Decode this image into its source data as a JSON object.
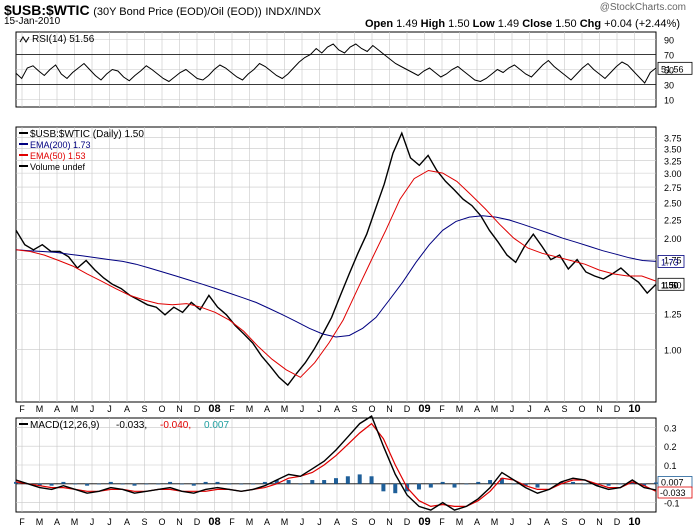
{
  "header": {
    "symbol": "$USB:$WTIC",
    "description": "(30Y Bond Price (EOD)/Oil (EOD))",
    "exchange": "INDX/INDX",
    "date": "15-Jan-2010",
    "brand": "@StockCharts.com",
    "quote": {
      "open_label": "Open",
      "open": "1.49",
      "high_label": "High",
      "high": "1.50",
      "low_label": "Low",
      "low": "1.49",
      "close_label": "Close",
      "close": "1.50",
      "chg_label": "Chg",
      "chg": "+0.04 (+2.44%)"
    }
  },
  "colors": {
    "price": "#000000",
    "ema200": "#000080",
    "ema50": "#e00000",
    "macd_hist": "#1f5f99",
    "signal": "#e00000",
    "grid": "#c8c8c8"
  },
  "chart_data": [
    {
      "type": "line",
      "panel": "rsi",
      "title": "RSI(14) 51.56",
      "ylim": [
        0,
        100
      ],
      "yticks": [
        10,
        30,
        50,
        70,
        90
      ],
      "reference_lines": [
        30,
        70
      ],
      "last_value": "51.56",
      "series": [
        {
          "name": "RSI(14)",
          "values": [
            45,
            38,
            52,
            55,
            48,
            42,
            50,
            56,
            44,
            38,
            46,
            52,
            58,
            50,
            42,
            36,
            44,
            50,
            48,
            40,
            35,
            42,
            48,
            55,
            50,
            44,
            38,
            34,
            40,
            46,
            50,
            44,
            38,
            36,
            42,
            50,
            56,
            52,
            46,
            40,
            36,
            44,
            50,
            58,
            54,
            48,
            42,
            38,
            44,
            52,
            60,
            66,
            70,
            78,
            72,
            80,
            84,
            76,
            72,
            80,
            84,
            78,
            74,
            82,
            76,
            70,
            64,
            58,
            54,
            50,
            46,
            42,
            48,
            52,
            46,
            40,
            44,
            50,
            54,
            48,
            42,
            36,
            34,
            38,
            44,
            50,
            46,
            52,
            56,
            50,
            44,
            40,
            48,
            56,
            62,
            54,
            48,
            42,
            36,
            44,
            52,
            58,
            50,
            44,
            38,
            46,
            54,
            60,
            56,
            48,
            40,
            32,
            46,
            52
          ]
        }
      ]
    },
    {
      "type": "line",
      "panel": "price",
      "title": "$USB:$WTIC (Daily) 1.50",
      "scale": "log",
      "ylim": [
        0.72,
        4.0
      ],
      "yticks": [
        1.0,
        1.25,
        1.5,
        1.75,
        2.0,
        2.25,
        2.5,
        2.75,
        3.0,
        3.25,
        3.5,
        3.75
      ],
      "x_month_labels": [
        "F",
        "M",
        "A",
        "M",
        "J",
        "J",
        "A",
        "S",
        "O",
        "N",
        "D",
        "08",
        "F",
        "M",
        "A",
        "M",
        "J",
        "J",
        "A",
        "S",
        "O",
        "N",
        "D",
        "09",
        "F",
        "M",
        "A",
        "M",
        "J",
        "J",
        "A",
        "S",
        "O",
        "N",
        "D",
        "10"
      ],
      "value_badges": [
        {
          "label": "1.73",
          "series": "EMA(200)"
        },
        {
          "label": "1.50",
          "series": "$USB:$WTIC"
        }
      ],
      "series": [
        {
          "name": "$USB:$WTIC (Daily) 1.50",
          "legend": "$USB:$WTIC (Daily) 1.50",
          "values": [
            2.1,
            1.92,
            1.86,
            1.92,
            1.84,
            1.84,
            1.78,
            1.66,
            1.74,
            1.64,
            1.56,
            1.5,
            1.46,
            1.4,
            1.36,
            1.32,
            1.3,
            1.24,
            1.3,
            1.26,
            1.34,
            1.28,
            1.4,
            1.3,
            1.24,
            1.16,
            1.1,
            1.04,
            0.96,
            0.9,
            0.84,
            0.8,
            0.86,
            0.92,
            1.0,
            1.1,
            1.22,
            1.4,
            1.6,
            1.82,
            2.05,
            2.4,
            2.8,
            3.4,
            3.85,
            3.3,
            3.15,
            3.35,
            3.05,
            2.85,
            2.7,
            2.55,
            2.45,
            2.3,
            2.1,
            1.95,
            1.8,
            1.72,
            1.9,
            2.05,
            1.9,
            1.75,
            1.8,
            1.65,
            1.75,
            1.62,
            1.58,
            1.55,
            1.6,
            1.66,
            1.58,
            1.52,
            1.42,
            1.5
          ]
        },
        {
          "name": "EMA(200)",
          "legend": "EMA(200) 1.73",
          "values": [
            1.86,
            1.85,
            1.84,
            1.83,
            1.81,
            1.79,
            1.77,
            1.75,
            1.73,
            1.7,
            1.66,
            1.62,
            1.58,
            1.54,
            1.5,
            1.46,
            1.42,
            1.38,
            1.34,
            1.29,
            1.24,
            1.19,
            1.14,
            1.1,
            1.08,
            1.09,
            1.14,
            1.22,
            1.36,
            1.52,
            1.72,
            1.92,
            2.1,
            2.22,
            2.28,
            2.3,
            2.28,
            2.24,
            2.18,
            2.12,
            2.06,
            2.0,
            1.95,
            1.9,
            1.85,
            1.81,
            1.77,
            1.74,
            1.73
          ]
        },
        {
          "name": "EMA(50)",
          "legend": "EMA(50) 1.53",
          "values": [
            1.86,
            1.84,
            1.8,
            1.74,
            1.68,
            1.6,
            1.53,
            1.46,
            1.4,
            1.36,
            1.33,
            1.32,
            1.33,
            1.3,
            1.26,
            1.2,
            1.12,
            1.02,
            0.94,
            0.88,
            0.84,
            0.92,
            1.04,
            1.2,
            1.45,
            1.75,
            2.1,
            2.55,
            2.9,
            3.05,
            3.0,
            2.85,
            2.62,
            2.4,
            2.18,
            2.0,
            1.88,
            1.82,
            1.78,
            1.74,
            1.7,
            1.64,
            1.6,
            1.58,
            1.58,
            1.53
          ]
        },
        {
          "name": "Volume",
          "legend": "Volume undef",
          "values": []
        }
      ]
    },
    {
      "type": "line",
      "panel": "macd",
      "title": "MACD(12,26,9)",
      "title_values": [
        {
          "text": "-0.033",
          "color": "#000000"
        },
        {
          "text": "-0.040",
          "color": "#e00000"
        },
        {
          "text": "0.007",
          "color": "#1f9fa0"
        }
      ],
      "ylim": [
        -0.15,
        0.35
      ],
      "yticks": [
        0.3,
        0.2,
        0.1,
        -0.1
      ],
      "value_badges": [
        {
          "label": "0.007"
        },
        {
          "label": "-0.033"
        }
      ],
      "x_month_labels": [
        "F",
        "M",
        "A",
        "M",
        "J",
        "J",
        "A",
        "S",
        "O",
        "N",
        "D",
        "08",
        "F",
        "M",
        "A",
        "M",
        "J",
        "J",
        "A",
        "S",
        "O",
        "N",
        "D",
        "09",
        "F",
        "M",
        "A",
        "M",
        "J",
        "J",
        "A",
        "S",
        "O",
        "N",
        "D",
        "10"
      ],
      "series": [
        {
          "name": "MACD",
          "values": [
            0.02,
            0.0,
            -0.02,
            -0.03,
            -0.01,
            -0.03,
            -0.05,
            -0.04,
            -0.02,
            -0.03,
            -0.05,
            -0.04,
            -0.03,
            -0.02,
            -0.04,
            -0.05,
            -0.03,
            -0.02,
            -0.03,
            -0.04,
            -0.03,
            -0.01,
            0.02,
            0.05,
            0.04,
            0.08,
            0.12,
            0.18,
            0.25,
            0.32,
            0.36,
            0.2,
            0.05,
            -0.06,
            -0.12,
            -0.14,
            -0.1,
            -0.14,
            -0.12,
            -0.08,
            -0.02,
            0.06,
            0.02,
            -0.02,
            -0.05,
            -0.03,
            0.01,
            0.03,
            0.02,
            -0.01,
            -0.03,
            -0.02,
            0.02,
            -0.02,
            -0.033
          ]
        },
        {
          "name": "Signal",
          "values": [
            0.01,
            0.0,
            -0.01,
            -0.02,
            -0.02,
            -0.03,
            -0.04,
            -0.04,
            -0.03,
            -0.03,
            -0.04,
            -0.04,
            -0.03,
            -0.03,
            -0.04,
            -0.04,
            -0.04,
            -0.03,
            -0.03,
            -0.04,
            -0.03,
            -0.02,
            0.0,
            0.03,
            0.04,
            0.06,
            0.1,
            0.15,
            0.21,
            0.27,
            0.32,
            0.24,
            0.1,
            -0.02,
            -0.09,
            -0.12,
            -0.11,
            -0.12,
            -0.12,
            -0.09,
            -0.04,
            0.03,
            0.02,
            -0.01,
            -0.03,
            -0.03,
            0.0,
            0.02,
            0.02,
            0.0,
            -0.02,
            -0.02,
            0.01,
            -0.01,
            -0.04
          ]
        }
      ]
    }
  ]
}
